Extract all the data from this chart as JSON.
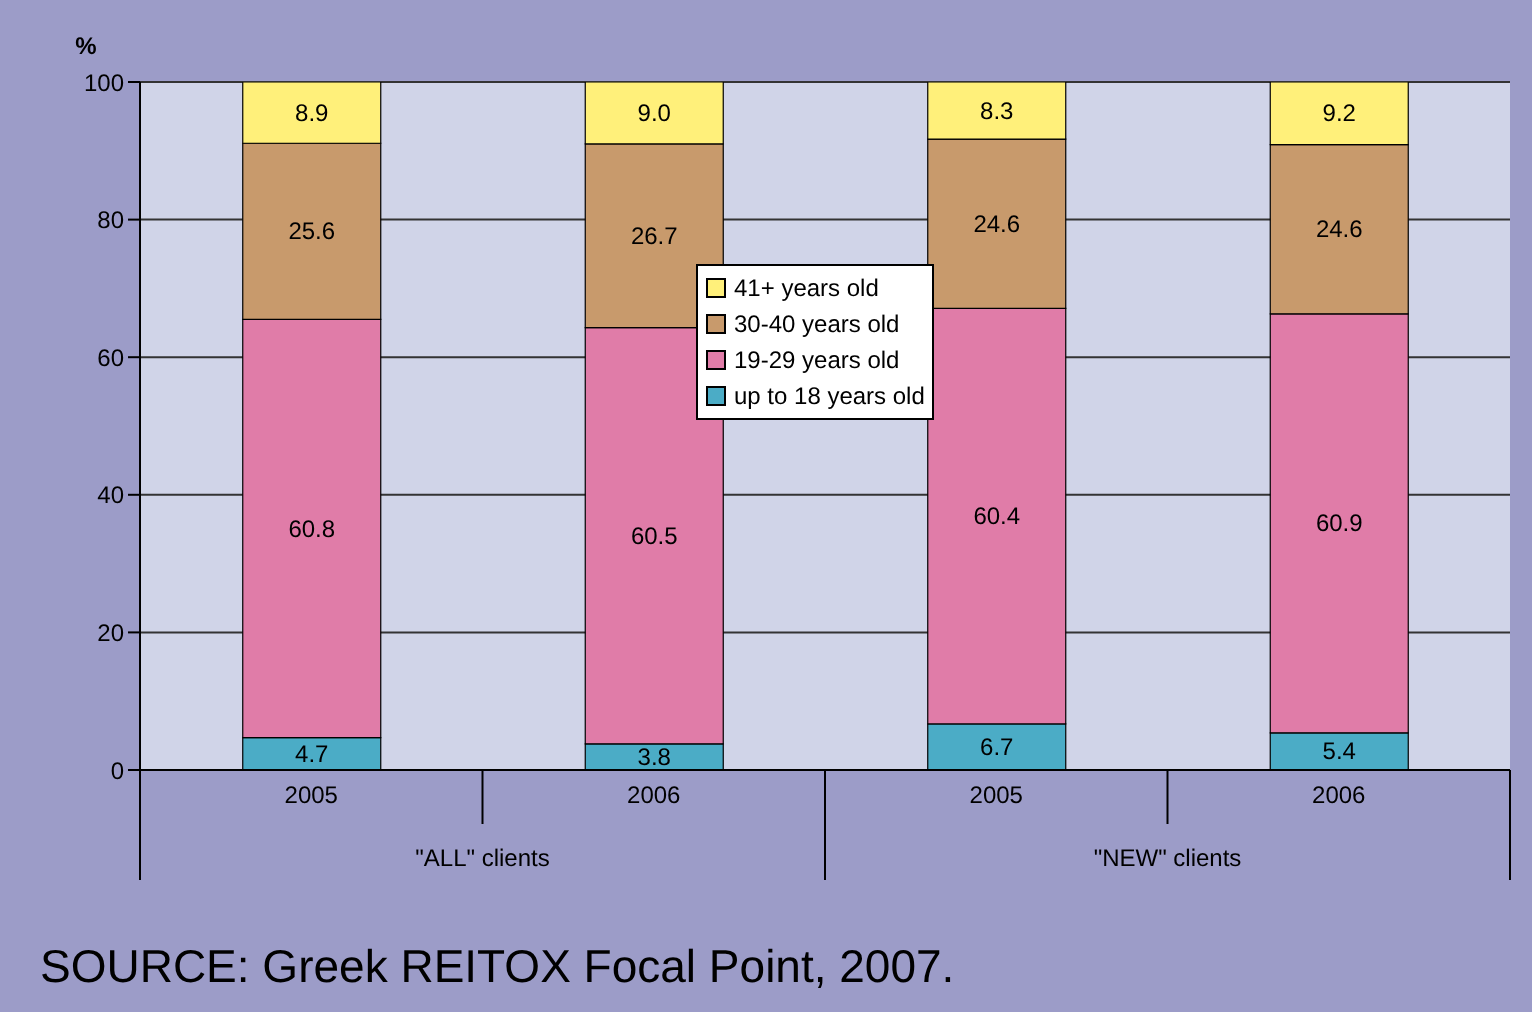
{
  "chart_data": {
    "type": "bar",
    "stacked": true,
    "ylabel": "%",
    "categories": [
      "2005",
      "2006",
      "2005",
      "2006"
    ],
    "series": [
      {
        "name": "up to 18 years old",
        "color": "#4bacc6",
        "values": [
          4.7,
          3.8,
          6.7,
          5.4
        ],
        "value_labels": [
          "4.7",
          "3.8",
          "6.7",
          "5.4"
        ]
      },
      {
        "name": "19-29 years old",
        "color": "#e07ca8",
        "values": [
          60.8,
          60.5,
          60.4,
          60.9
        ],
        "value_labels": [
          "60.8",
          "60.5",
          "60.4",
          "60.9"
        ]
      },
      {
        "name": "30-40 years old",
        "color": "#c89a6c",
        "values": [
          25.6,
          26.7,
          24.6,
          24.6
        ],
        "value_labels": [
          "25.6",
          "26.7",
          "24.6",
          "24.6"
        ]
      },
      {
        "name": "41+ years old",
        "color": "#fff07a",
        "values": [
          8.9,
          9.0,
          8.3,
          9.2
        ],
        "value_labels": [
          "8.9",
          "9.0",
          "8.3",
          "9.2"
        ]
      }
    ],
    "ylim": [
      0,
      100
    ],
    "yticks": [
      0,
      20,
      40,
      60,
      80,
      100
    ],
    "grid": "y",
    "legend": "top",
    "annotations": [
      "\"ALL\" clients",
      "\"NEW\" clients",
      "SOURCE: Greek REITOX Focal Point, 2007."
    ]
  }
}
